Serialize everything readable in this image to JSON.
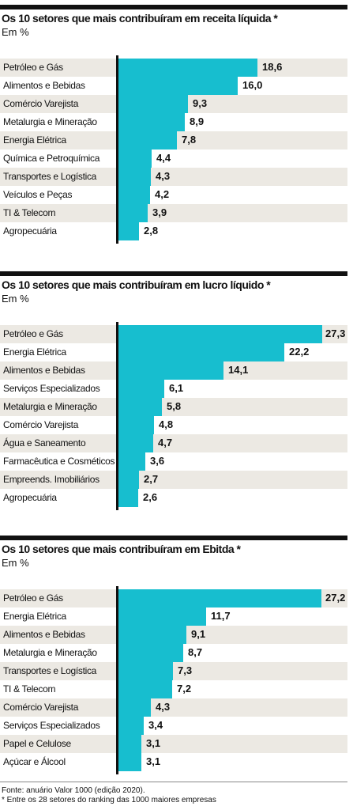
{
  "chart_data": [
    {
      "type": "bar",
      "orientation": "horizontal",
      "title": "Os 10 setores que mais contribuíram em receita líquida *",
      "unit": "Em %",
      "categories": [
        "Petróleo e Gás",
        "Alimentos e Bebidas",
        "Comércio Varejista",
        "Metalurgia e Mineração",
        "Energia Elétrica",
        "Química e Petroquímica",
        "Transportes e Logística",
        "Veículos e Peças",
        "TI & Telecom",
        "Agropecuária"
      ],
      "values": [
        18.6,
        16.0,
        9.3,
        8.9,
        7.8,
        4.4,
        4.3,
        4.2,
        3.9,
        2.8
      ],
      "labels": [
        "18,6",
        "16,0",
        "9,3",
        "8,9",
        "7,8",
        "4,4",
        "4,3",
        "4,2",
        "3,9",
        "2,8"
      ],
      "bar_color": "#17becf",
      "grid": false
    },
    {
      "type": "bar",
      "orientation": "horizontal",
      "title": "Os 10 setores que mais contribuíram em lucro líquido *",
      "unit": "Em %",
      "categories": [
        "Petróleo e Gás",
        "Energia Elétrica",
        "Alimentos e Bebidas",
        "Serviços Especializados",
        "Metalurgia e Mineração",
        "Comércio Varejista",
        "Água e Saneamento",
        "Farmacêutica e Cosméticos",
        "Empreends. Imobiliários",
        "Agropecuária"
      ],
      "values": [
        27.3,
        22.2,
        14.1,
        6.1,
        5.8,
        4.8,
        4.7,
        3.6,
        2.7,
        2.6
      ],
      "labels": [
        "27,3",
        "22,2",
        "14,1",
        "6,1",
        "5,8",
        "4,8",
        "4,7",
        "3,6",
        "2,7",
        "2,6"
      ],
      "bar_color": "#17becf",
      "grid": false
    },
    {
      "type": "bar",
      "orientation": "horizontal",
      "title": "Os 10 setores que mais contribuíram em Ebitda *",
      "unit": "Em %",
      "categories": [
        "Petróleo e Gás",
        "Energia Elétrica",
        "Alimentos e Bebidas",
        "Metalurgia e Mineração",
        "Transportes e Logística",
        "TI & Telecom",
        "Comércio Varejista",
        "Serviços Especializados",
        "Papel e Celulose",
        "Açúcar e Álcool"
      ],
      "values": [
        27.2,
        11.7,
        9.1,
        8.7,
        7.3,
        7.2,
        4.3,
        3.4,
        3.1,
        3.1
      ],
      "labels": [
        "27,2",
        "11,7",
        "9,1",
        "8,7",
        "7,3",
        "7,2",
        "4,3",
        "3,4",
        "3,1",
        "3,1"
      ],
      "bar_color": "#17becf",
      "grid": false
    }
  ],
  "footer": {
    "source": "Fonte: anuário Valor 1000 (edição 2020).",
    "note": "* Entre os 28 setores do ranking das 1000 maiores empresas"
  }
}
